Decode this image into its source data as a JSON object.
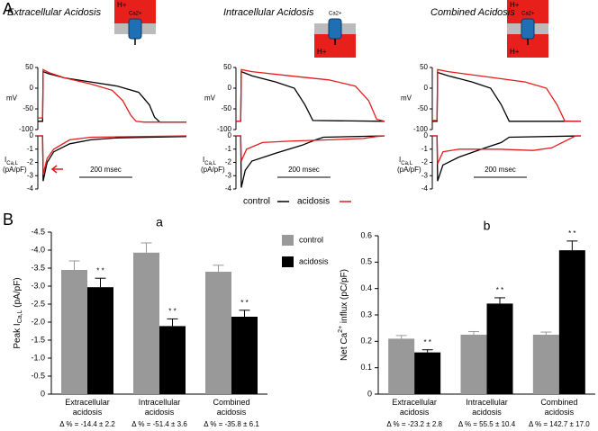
{
  "panel_labels": {
    "a": "A",
    "b": "B"
  },
  "icons": {
    "proton": "H+",
    "calcium": "Ca2+"
  },
  "chart_data": [
    {
      "type": "line",
      "title": "Extracellular Acidosis",
      "ylabel": "mV",
      "xlim": [
        0,
        560
      ],
      "ylim": [
        -100,
        50
      ],
      "yticks": [
        50,
        0,
        -50,
        -100
      ],
      "series": [
        {
          "name": "control",
          "color": "#000000",
          "x": [
            0,
            18,
            20,
            40,
            100,
            200,
            300,
            380,
            420,
            440,
            460,
            560
          ],
          "values": [
            -80,
            -80,
            40,
            35,
            25,
            15,
            5,
            -10,
            -40,
            -70,
            -82,
            -82
          ]
        },
        {
          "name": "acidosis",
          "color": "#e41a1c",
          "x": [
            0,
            18,
            20,
            40,
            100,
            200,
            280,
            320,
            350,
            370,
            400,
            560
          ],
          "values": [
            -72,
            -72,
            45,
            38,
            25,
            10,
            -5,
            -30,
            -65,
            -80,
            -82,
            -82
          ]
        }
      ]
    },
    {
      "type": "line",
      "title": "Intracellular Acidosis",
      "ylabel": "mV",
      "xlim": [
        0,
        560
      ],
      "ylim": [
        -100,
        50
      ],
      "yticks": [
        50,
        0,
        -50,
        -100
      ],
      "series": [
        {
          "name": "control",
          "color": "#000000",
          "x": [
            0,
            18,
            20,
            60,
            150,
            220,
            260,
            290,
            560
          ],
          "values": [
            -80,
            -80,
            40,
            30,
            15,
            0,
            -40,
            -78,
            -80
          ]
        },
        {
          "name": "acidosis",
          "color": "#e41a1c",
          "x": [
            0,
            18,
            20,
            60,
            200,
            350,
            450,
            500,
            530,
            560
          ],
          "values": [
            -80,
            -80,
            45,
            40,
            30,
            20,
            5,
            -30,
            -75,
            -80
          ]
        }
      ]
    },
    {
      "type": "line",
      "title": "Combined Acidosis",
      "ylabel": "mV",
      "xlim": [
        0,
        560
      ],
      "ylim": [
        -100,
        50
      ],
      "yticks": [
        50,
        0,
        -50,
        -100
      ],
      "series": [
        {
          "name": "control",
          "color": "#000000",
          "x": [
            0,
            18,
            20,
            60,
            150,
            220,
            260,
            290,
            560
          ],
          "values": [
            -80,
            -80,
            38,
            30,
            15,
            0,
            -40,
            -80,
            -80
          ]
        },
        {
          "name": "acidosis",
          "color": "#e41a1c",
          "x": [
            0,
            18,
            20,
            60,
            200,
            350,
            430,
            470,
            500,
            560
          ],
          "values": [
            -78,
            -78,
            45,
            40,
            28,
            15,
            0,
            -40,
            -80,
            -80
          ]
        }
      ]
    },
    {
      "type": "line",
      "ylabel": {
        "main": "I",
        "sub": "Ca,L",
        "unit": "(pA/pF)"
      },
      "scale_bar": {
        "length": 200,
        "label": "200 msec"
      },
      "xlim": [
        0,
        560
      ],
      "ylim": [
        -4,
        0
      ],
      "yticks": [
        0,
        -1,
        -2,
        -3,
        -4
      ],
      "series": [
        {
          "name": "control",
          "color": "#000000",
          "x": [
            0,
            18,
            20,
            35,
            60,
            120,
            200,
            300,
            560
          ],
          "values": [
            0,
            0,
            -3.4,
            -2.0,
            -1.2,
            -0.6,
            -0.3,
            -0.15,
            -0.05
          ]
        },
        {
          "name": "acidosis",
          "color": "#e41a1c",
          "x": [
            0,
            18,
            20,
            35,
            60,
            120,
            200,
            560
          ],
          "values": [
            0,
            0,
            -2.9,
            -1.7,
            -1.0,
            -0.3,
            -0.1,
            0
          ]
        }
      ]
    },
    {
      "type": "line",
      "ylabel": {
        "main": "I",
        "sub": "Ca,L",
        "unit": "(pA/pF)"
      },
      "scale_bar": {
        "length": 200,
        "label": "200 msec"
      },
      "xlim": [
        0,
        560
      ],
      "ylim": [
        -4,
        0
      ],
      "yticks": [
        0,
        -1,
        -2,
        -3,
        -4
      ],
      "series": [
        {
          "name": "control",
          "color": "#000000",
          "x": [
            0,
            18,
            20,
            35,
            60,
            150,
            250,
            300,
            330,
            560
          ],
          "values": [
            0,
            0,
            -3.9,
            -2.6,
            -1.9,
            -1.3,
            -0.7,
            -0.3,
            -0.1,
            0
          ]
        },
        {
          "name": "acidosis",
          "color": "#e41a1c",
          "x": [
            0,
            18,
            20,
            40,
            100,
            200,
            350,
            480,
            530,
            560
          ],
          "values": [
            0,
            0,
            -1.9,
            -1.0,
            -0.5,
            -0.4,
            -0.3,
            -0.2,
            -0.05,
            0
          ]
        }
      ]
    },
    {
      "type": "line",
      "ylabel": {
        "main": "I",
        "sub": "Ca,L",
        "unit": "(pA/pF)"
      },
      "scale_bar": {
        "length": 200,
        "label": "200 msec"
      },
      "xlim": [
        0,
        560
      ],
      "ylim": [
        -4,
        0
      ],
      "yticks": [
        0,
        -1,
        -2,
        -3,
        -4
      ],
      "series": [
        {
          "name": "control",
          "color": "#000000",
          "x": [
            0,
            18,
            20,
            40,
            100,
            200,
            260,
            290,
            560
          ],
          "values": [
            0,
            0,
            -3.4,
            -2.2,
            -1.6,
            -0.9,
            -0.5,
            -0.1,
            0
          ]
        },
        {
          "name": "acidosis",
          "color": "#e41a1c",
          "x": [
            0,
            18,
            20,
            40,
            100,
            250,
            380,
            450,
            510,
            540,
            560
          ],
          "values": [
            0,
            0,
            -2.1,
            -1.2,
            -1.0,
            -1.0,
            -1.1,
            -0.9,
            -0.3,
            0,
            0
          ]
        }
      ]
    },
    {
      "type": "bar",
      "title": "a",
      "ylabel": {
        "main": "Peak I",
        "sub": "Ca,L",
        "unit": " (pA/pF)"
      },
      "significance": "* *",
      "categories": [
        "Extracellular acidosis",
        "Intracellular acidosis",
        "Combined acidosis"
      ],
      "delta_labels": [
        "Δ % = -14.4 ± 2.2",
        "Δ % = -51.4 ± 3.6",
        "Δ % = -35.8 ± 6.1"
      ],
      "ylim": [
        0,
        -4.5
      ],
      "yticks": [
        {
          "value": 0,
          "label": "0"
        },
        -0.5,
        {
          "value": -1,
          "label": "-1.0"
        },
        -1.5,
        {
          "value": -2,
          "label": "-2.0"
        },
        -2.5,
        {
          "value": -3,
          "label": "-3.0"
        },
        -3.5,
        {
          "value": -4,
          "label": "-4.0"
        },
        -4.5
      ],
      "series": [
        {
          "name": "control",
          "color": "#999999",
          "values": [
            -3.45,
            -3.93,
            -3.4
          ],
          "errors": [
            0.25,
            0.27,
            0.18
          ]
        },
        {
          "name": "acidosis",
          "color": "#000000",
          "values": [
            -2.97,
            -1.89,
            -2.15
          ],
          "errors": [
            0.25,
            0.2,
            0.18
          ]
        }
      ]
    },
    {
      "type": "bar",
      "title": "b",
      "ylabel": {
        "main": "Net Ca",
        "sup": "2+",
        "unit": " influx (pC/pF)"
      },
      "significance": "* *",
      "categories": [
        "Extracellular acidosis",
        "Intracellular acidosis",
        "Combined acidosis"
      ],
      "delta_labels": [
        "Δ % = -23.2 ± 2.8",
        "Δ % = 55.5 ± 10.4",
        "Δ % = 142.7 ± 17.0"
      ],
      "ylim": [
        0,
        0.6
      ],
      "yticks": [
        0,
        0.1,
        0.2,
        0.3,
        0.4,
        0.5,
        0.6
      ],
      "series": [
        {
          "name": "control",
          "color": "#999999",
          "values": [
            0.21,
            0.225,
            0.225
          ],
          "errors": [
            0.012,
            0.012,
            0.01
          ]
        },
        {
          "name": "acidosis",
          "color": "#000000",
          "values": [
            0.158,
            0.343,
            0.545
          ],
          "errors": [
            0.01,
            0.022,
            0.035
          ]
        }
      ]
    }
  ]
}
